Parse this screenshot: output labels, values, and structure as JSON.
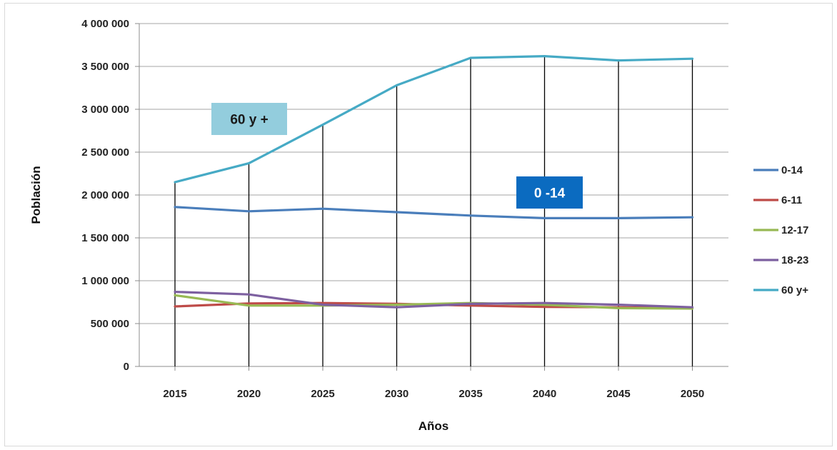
{
  "chart_data": {
    "type": "line",
    "xlabel": "Años",
    "ylabel": "Población",
    "categories": [
      "2015",
      "2020",
      "2025",
      "2030",
      "2035",
      "2040",
      "2045",
      "2050"
    ],
    "ylim": [
      0,
      4000000
    ],
    "yticks": [
      0,
      500000,
      1000000,
      1500000,
      2000000,
      2500000,
      3000000,
      3500000,
      4000000
    ],
    "ytick_labels": [
      "0",
      "500 000",
      "1 000 000",
      "1 500 000",
      "2 000 000",
      "2 500 000",
      "3 000 000",
      "3 500 000",
      "4 000 000"
    ],
    "grid": "horizontal",
    "legend_position": "right",
    "series": [
      {
        "name": "0-14",
        "color": "#4a7ebb",
        "values": [
          1860000,
          1810000,
          1840000,
          1800000,
          1760000,
          1730000,
          1730000,
          1740000
        ]
      },
      {
        "name": "6-11",
        "color": "#be4b48",
        "values": [
          700000,
          735000,
          740000,
          730000,
          710000,
          695000,
          690000,
          680000
        ]
      },
      {
        "name": "12-17",
        "color": "#98b954",
        "values": [
          830000,
          710000,
          710000,
          720000,
          740000,
          720000,
          680000,
          675000
        ]
      },
      {
        "name": "18-23",
        "color": "#7d60a0",
        "values": [
          870000,
          840000,
          720000,
          690000,
          730000,
          740000,
          720000,
          690000
        ]
      },
      {
        "name": "60 y+",
        "color": "#46aac5",
        "values": [
          2150000,
          2370000,
          2820000,
          3280000,
          3600000,
          3620000,
          3570000,
          3590000
        ]
      }
    ],
    "annotations": [
      {
        "text": "60 y +",
        "background": "#93cddd",
        "color": "#1a1a1a"
      },
      {
        "text": "0 -14",
        "background": "#0b6bc0",
        "color": "#ffffff"
      }
    ]
  }
}
